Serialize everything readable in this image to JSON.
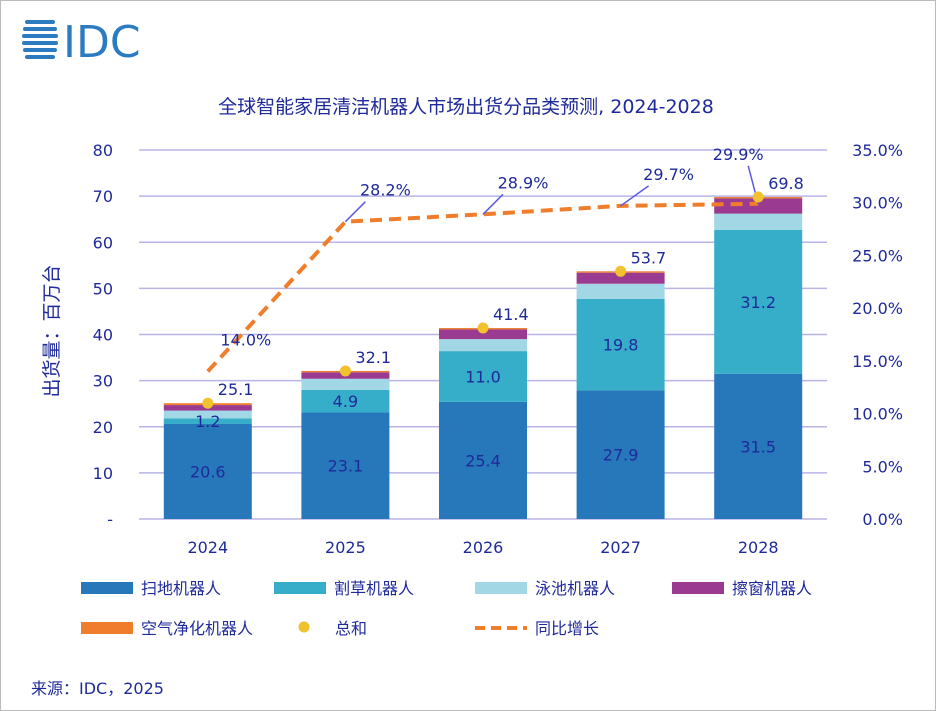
{
  "logo_text": "IDC",
  "source": "来源：IDC，2025",
  "chart_data": {
    "type": "bar",
    "stacked": true,
    "title": "全球智能家居清洁机器人市场出货分品类预测, 2024-2028",
    "ylabel": "出货量：百万台",
    "ylim": [
      0,
      80
    ],
    "y_ticks": [
      "-",
      "10",
      "20",
      "30",
      "40",
      "50",
      "60",
      "70",
      "80"
    ],
    "y2lim": [
      0,
      35
    ],
    "y2_ticks": [
      "0.0%",
      "5.0%",
      "10.0%",
      "15.0%",
      "20.0%",
      "25.0%",
      "30.0%",
      "35.0%"
    ],
    "grid": true,
    "legend_position": "bottom",
    "categories": [
      "2024",
      "2025",
      "2026",
      "2027",
      "2028"
    ],
    "series": [
      {
        "name": "扫地机器人",
        "color": "#2777bb",
        "values": [
          20.6,
          23.1,
          25.4,
          27.9,
          31.5
        ],
        "labels": [
          "20.6",
          "23.1",
          "25.4",
          "27.9",
          "31.5"
        ]
      },
      {
        "name": "割草机器人",
        "color": "#36adc9",
        "values": [
          1.2,
          4.9,
          11.0,
          19.8,
          31.2
        ],
        "labels": [
          "1.2",
          "4.9",
          "11.0",
          "19.8",
          "31.2"
        ]
      },
      {
        "name": "泳池机器人",
        "color": "#a2d8e6",
        "values": [
          1.7,
          2.4,
          2.6,
          3.3,
          3.5
        ]
      },
      {
        "name": "擦窗机器人",
        "color": "#9a3b91",
        "values": [
          1.2,
          1.4,
          2.1,
          2.4,
          3.3
        ]
      },
      {
        "name": "空气净化机器人",
        "color": "#ef7d2c",
        "values": [
          0.4,
          0.3,
          0.3,
          0.3,
          0.3
        ]
      }
    ],
    "total": {
      "name": "总和",
      "color": "#f2c12e",
      "values": [
        25.1,
        32.1,
        41.4,
        53.7,
        69.8
      ],
      "labels": [
        "25.1",
        "32.1",
        "41.4",
        "53.7",
        "69.8"
      ]
    },
    "growth": {
      "name": "同比增长",
      "color": "#ef7d2c",
      "axis": "right",
      "values": [
        14.0,
        28.2,
        28.9,
        29.7,
        29.9
      ],
      "labels": [
        "14.0%",
        "28.2%",
        "28.9%",
        "29.7%",
        "29.9%"
      ]
    }
  }
}
